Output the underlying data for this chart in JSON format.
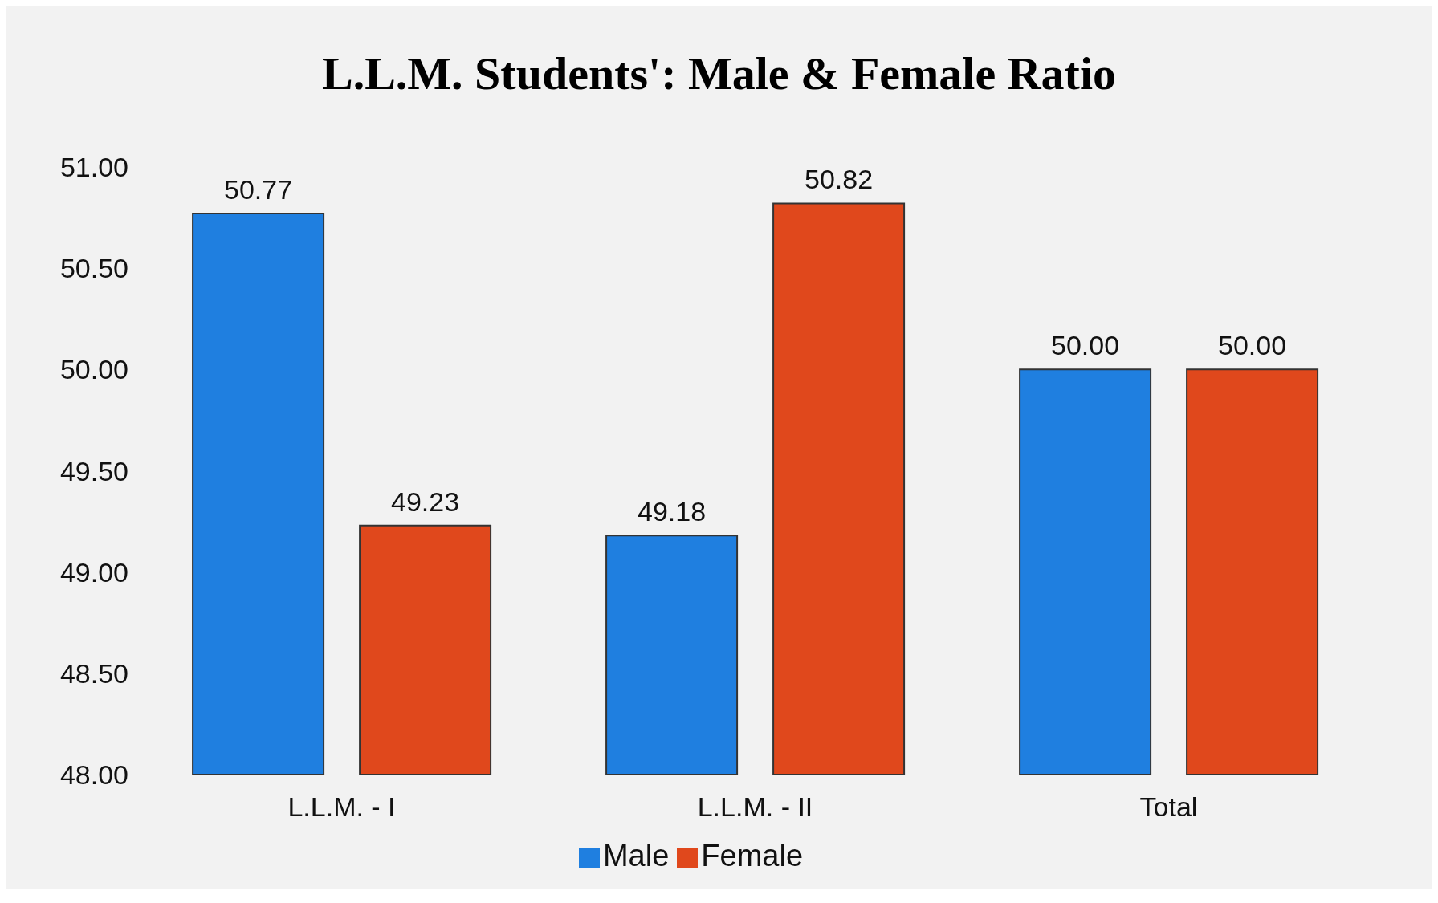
{
  "chart_data": {
    "type": "bar",
    "title": "L.L.M. Students': Male & Female Ratio",
    "categories": [
      "L.L.M. - I",
      "L.L.M. - II",
      "Total"
    ],
    "series": [
      {
        "name": "Male",
        "color": "#1f7fe0",
        "values": [
          50.77,
          49.18,
          50.0
        ],
        "value_labels": [
          "50.77",
          "49.18",
          "50.00"
        ]
      },
      {
        "name": "Female",
        "color": "#e0481c",
        "values": [
          49.23,
          50.82,
          50.0
        ],
        "value_labels": [
          "49.23",
          "50.82",
          "50.00"
        ]
      }
    ],
    "ylim": [
      48,
      51
    ],
    "yticks": [
      {
        "value": 48,
        "label": "48.00"
      },
      {
        "value": 48.5,
        "label": "48.50"
      },
      {
        "value": 49,
        "label": "49.00"
      },
      {
        "value": 49.5,
        "label": "49.50"
      },
      {
        "value": 50,
        "label": "50.00"
      },
      {
        "value": 50.5,
        "label": "50.50"
      },
      {
        "value": 51,
        "label": "51.00"
      }
    ],
    "grid": false,
    "legend": "bottom"
  }
}
